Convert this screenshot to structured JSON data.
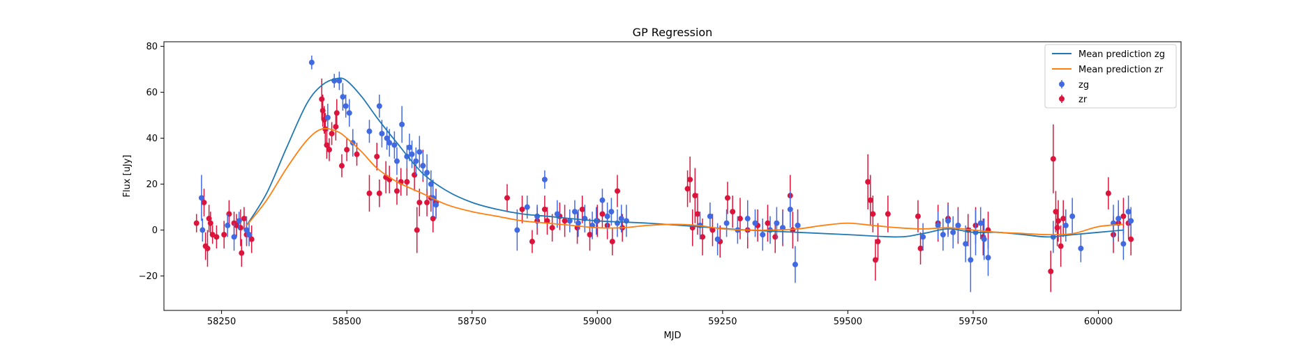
{
  "chart_data": {
    "type": "scatter",
    "title": "GP Regression",
    "xlabel": "MJD",
    "ylabel": "Flux [uJy]",
    "xlim": [
      58135,
      60165
    ],
    "ylim": [
      -35,
      82
    ],
    "xticks": [
      58250,
      58500,
      58750,
      59000,
      59250,
      59500,
      59750,
      60000
    ],
    "yticks": [
      -20,
      0,
      20,
      40,
      60,
      80
    ],
    "legend_position": "upper-right",
    "colors": {
      "zg_line": "#1f77b4",
      "zr_line": "#ff7f0e",
      "zg_points": "#4169e1",
      "zr_points": "#dc143c"
    },
    "lines": [
      {
        "name": "Mean prediction zg",
        "x": [
          58300,
          58340,
          58380,
          58420,
          58450,
          58480,
          58500,
          58530,
          58560,
          58600,
          58650,
          58700,
          58750,
          58800,
          58850,
          58900,
          59000,
          59100,
          59200,
          59300,
          59400,
          59500,
          59600,
          59650,
          59700,
          59750,
          59800,
          59850,
          59900,
          59950,
          60000,
          60050
        ],
        "y": [
          2,
          16,
          36,
          55,
          63,
          66,
          65,
          58,
          49,
          38,
          25,
          17,
          12,
          9,
          7,
          6,
          4,
          3,
          1.5,
          0,
          -1,
          -2,
          -3,
          -1.5,
          0.5,
          -1,
          -1,
          -2,
          -3,
          -2,
          -1,
          0
        ]
      },
      {
        "name": "Mean prediction zr",
        "x": [
          58300,
          58340,
          58380,
          58420,
          58450,
          58480,
          58500,
          58530,
          58560,
          58600,
          58650,
          58700,
          58750,
          58800,
          58850,
          58900,
          58950,
          59000,
          59050,
          59100,
          59150,
          59200,
          59250,
          59300,
          59350,
          59400,
          59450,
          59500,
          59550,
          59600,
          59650,
          59700,
          59750,
          59800,
          59850,
          59900,
          59950,
          60000,
          60050
        ],
        "y": [
          2,
          13,
          27,
          39,
          44,
          43,
          40,
          34,
          27,
          21,
          16,
          11,
          8,
          6,
          4,
          3,
          2,
          1,
          1,
          2,
          2.5,
          2,
          0.5,
          0,
          0,
          0.5,
          2,
          3,
          2,
          1,
          0.5,
          1,
          0,
          -1,
          -1.5,
          -2,
          -1.5,
          1.5,
          2.5
        ]
      }
    ],
    "series": [
      {
        "name": "zg",
        "x": [
          58210,
          58212,
          58262,
          58275,
          58285,
          58300,
          58305,
          58430,
          58462,
          58475,
          58485,
          58492,
          58498,
          58505,
          58512,
          58545,
          58565,
          58570,
          58580,
          58585,
          58595,
          58600,
          58610,
          58620,
          58625,
          58630,
          58638,
          58645,
          58652,
          58660,
          58668,
          58672,
          58678,
          58840,
          58860,
          58880,
          58895,
          58920,
          58945,
          58955,
          58962,
          58975,
          58990,
          58998,
          59010,
          59020,
          59028,
          59040,
          59048,
          59058,
          59205,
          59225,
          59240,
          59258,
          59280,
          59300,
          59315,
          59330,
          59345,
          59358,
          59370,
          59385,
          59395,
          59400,
          59650,
          59680,
          59690,
          59700,
          59710,
          59720,
          59735,
          59745,
          59755,
          59765,
          59772,
          59780,
          59910,
          59935,
          59948,
          59965,
          60030,
          60040,
          60050,
          60060,
          60065
        ],
        "y": [
          14,
          0,
          2,
          -3,
          4,
          0,
          -2,
          73,
          49,
          65,
          65,
          58,
          54,
          51,
          38,
          43,
          54,
          42,
          40,
          38,
          37,
          30,
          46,
          32,
          36,
          33,
          30,
          34,
          28,
          25,
          20,
          14,
          11,
          0,
          10,
          6,
          22,
          7,
          4,
          8,
          3,
          5,
          2,
          4,
          13,
          6,
          8,
          3,
          5,
          4,
          2,
          6,
          -4,
          3,
          0,
          5,
          3,
          -2,
          0,
          3,
          1,
          9,
          -15,
          2,
          -3,
          2,
          -2,
          4,
          -1,
          2,
          -6,
          -13,
          -1,
          3,
          -4,
          -12,
          -3,
          2,
          6,
          -8,
          3,
          5,
          -6,
          8,
          4
        ],
        "yerr": [
          10,
          5,
          5,
          6,
          4,
          6,
          5,
          3,
          6,
          3,
          4,
          6,
          5,
          6,
          6,
          5,
          5,
          6,
          5,
          6,
          6,
          6,
          8,
          5,
          6,
          6,
          6,
          7,
          6,
          8,
          6,
          8,
          6,
          9,
          5,
          5,
          4,
          6,
          5,
          5,
          6,
          6,
          6,
          6,
          5,
          6,
          6,
          6,
          6,
          7,
          6,
          6,
          7,
          6,
          6,
          8,
          6,
          7,
          6,
          7,
          7,
          8,
          8,
          6,
          6,
          6,
          7,
          7,
          7,
          7,
          8,
          14,
          10,
          7,
          9,
          8,
          7,
          7,
          8,
          6,
          8,
          8,
          7,
          7,
          6
        ]
      },
      {
        "name": "zr",
        "x": [
          58200,
          58215,
          58218,
          58222,
          58225,
          58228,
          58232,
          58240,
          58255,
          58265,
          58275,
          58280,
          58288,
          58290,
          58295,
          58300,
          58310,
          58450,
          58452,
          58455,
          58457,
          58460,
          58465,
          58470,
          58478,
          58480,
          58490,
          58500,
          58520,
          58545,
          58560,
          58565,
          58578,
          58585,
          58600,
          58608,
          58620,
          58635,
          58640,
          58645,
          58652,
          58660,
          58668,
          58672,
          58678,
          58820,
          58850,
          58870,
          58880,
          58895,
          58900,
          58910,
          58925,
          58935,
          58960,
          58970,
          58985,
          59000,
          59010,
          59020,
          59030,
          59040,
          59050,
          59180,
          59185,
          59190,
          59195,
          59200,
          59210,
          59230,
          59245,
          59260,
          59270,
          59285,
          59300,
          59320,
          59340,
          59355,
          59370,
          59385,
          59390,
          59400,
          59540,
          59545,
          59550,
          59555,
          59560,
          59580,
          59640,
          59645,
          59680,
          59700,
          59720,
          59740,
          59755,
          59770,
          59780,
          59905,
          59910,
          59915,
          59918,
          59920,
          59925,
          59930,
          60020,
          60030,
          60040,
          60050,
          60060,
          60065
        ],
        "y": [
          3,
          12,
          -7,
          -8,
          5,
          3,
          -2,
          -3,
          -2,
          7,
          3,
          2,
          1,
          -10,
          5,
          -2,
          -4,
          57,
          52,
          48,
          44,
          37,
          35,
          42,
          45,
          51,
          28,
          35,
          33,
          16,
          32,
          16,
          23,
          22,
          17,
          21,
          21,
          24,
          0,
          12,
          28,
          12,
          14,
          5,
          12,
          14,
          9,
          -5,
          4,
          9,
          4,
          1,
          6,
          4,
          1,
          9,
          -2,
          4,
          7,
          2,
          -5,
          17,
          1,
          18,
          22,
          1,
          15,
          7,
          -3,
          0,
          -5,
          14,
          8,
          5,
          0,
          2,
          3,
          -3,
          1,
          15,
          0,
          2,
          21,
          13,
          7,
          -13,
          -5,
          7,
          6,
          -8,
          3,
          5,
          2,
          0,
          2,
          -3,
          0,
          -18,
          31,
          8,
          1,
          4,
          -7,
          5,
          16,
          -2,
          3,
          6,
          3,
          -4
        ],
        "yerr": [
          4,
          6,
          6,
          8,
          6,
          5,
          4,
          5,
          6,
          6,
          5,
          5,
          8,
          6,
          5,
          5,
          6,
          9,
          7,
          6,
          7,
          6,
          5,
          5,
          6,
          6,
          5,
          5,
          5,
          8,
          6,
          6,
          7,
          6,
          6,
          6,
          6,
          7,
          10,
          6,
          7,
          6,
          6,
          6,
          6,
          6,
          6,
          5,
          6,
          6,
          6,
          6,
          6,
          7,
          7,
          6,
          7,
          7,
          6,
          6,
          6,
          7,
          6,
          8,
          10,
          8,
          12,
          9,
          8,
          7,
          7,
          7,
          7,
          9,
          8,
          7,
          8,
          7,
          8,
          9,
          8,
          7,
          12,
          11,
          8,
          9,
          8,
          8,
          7,
          7,
          8,
          7,
          8,
          7,
          8,
          8,
          8,
          9,
          15,
          9,
          8,
          9,
          9,
          8,
          7,
          8,
          8,
          8,
          7,
          7
        ]
      }
    ]
  }
}
